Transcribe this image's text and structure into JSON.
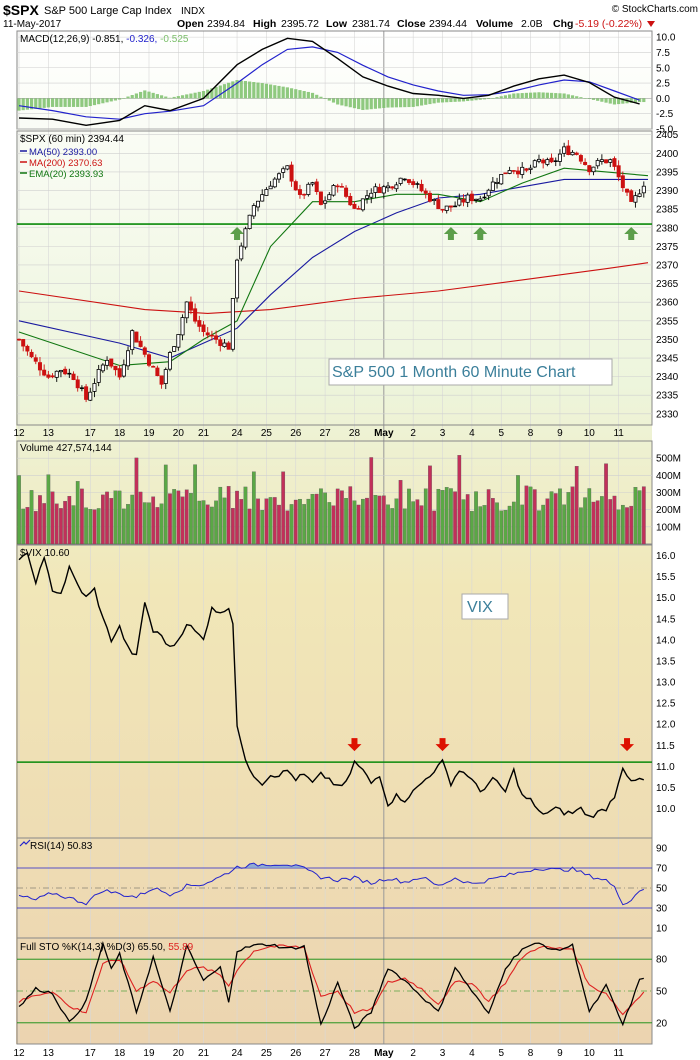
{
  "header": {
    "symbol": "$SPX",
    "name": "S&P 500 Large Cap Index",
    "exchange": "INDX",
    "date": "11-May-2017",
    "open_label": "Open",
    "open": "2394.84",
    "high_label": "High",
    "high": "2395.72",
    "low_label": "Low",
    "low": "2381.74",
    "close_label": "Close",
    "close": "2394.44",
    "volume_label": "Volume",
    "volume": "2.0B",
    "chg_label": "Chg",
    "chg": "-5.19 (-0.22%)",
    "credit": "© StockCharts.com"
  },
  "x_axis": {
    "labels": [
      "12",
      "13",
      "17",
      "18",
      "19",
      "20",
      "21",
      "24",
      "25",
      "26",
      "27",
      "28",
      "May",
      "2",
      "3",
      "4",
      "5",
      "8",
      "9",
      "10",
      "11"
    ],
    "label_bars": [
      0,
      7,
      17,
      24,
      31,
      38,
      44,
      52,
      59,
      66,
      73,
      80,
      87,
      94,
      101,
      108,
      115,
      122,
      129,
      136,
      143
    ]
  },
  "colors": {
    "up": "#2e8b2e",
    "down": "#cc1111",
    "ma50": "#1a1aa0",
    "ma200": "#cc1111",
    "ema20": "#117711",
    "support": "#0a8a0a",
    "resistance_line": "#cc0000",
    "bg_top": "#ffffff",
    "bg_bottom": "#ecd9b8",
    "arrow_up": "#5c9e4a",
    "arrow_down": "#dd1100"
  },
  "chart_data": [
    {
      "type": "line",
      "panel": "macd",
      "title": "MACD(12,26,9)",
      "values_label": [
        "-0.851",
        "-0.326",
        "-0.525"
      ],
      "ylim": [
        -5,
        11
      ],
      "yticks": [
        "10.0",
        "7.5",
        "5.0",
        "2.5",
        "0.0",
        "-2.5",
        "-5.0"
      ],
      "ytick_values": [
        10,
        7.5,
        5,
        2.5,
        0,
        -2.5,
        -5
      ],
      "points_x": [
        0,
        8,
        16,
        24,
        30,
        36,
        44,
        52,
        58,
        64,
        70,
        76,
        82,
        88,
        94,
        100,
        106,
        112,
        118,
        124,
        130,
        136,
        142,
        148
      ],
      "macd": [
        -3.2,
        -3.4,
        -4.4,
        -3.6,
        -1.2,
        -2.0,
        0,
        5.5,
        8.0,
        9.8,
        9.3,
        6.5,
        3.5,
        2.0,
        0.8,
        0.5,
        0,
        0.5,
        2.0,
        3.2,
        3.8,
        2.6,
        0.2,
        -0.9
      ],
      "signal": [
        -1.2,
        -2.0,
        -3.0,
        -3.4,
        -2.5,
        -2.1,
        -1.2,
        2.5,
        5.5,
        8.0,
        8.4,
        7.5,
        5.4,
        3.5,
        2.2,
        1.2,
        0.5,
        0.6,
        1.2,
        2.2,
        3.0,
        2.7,
        1.2,
        -0.3
      ]
    },
    {
      "type": "candlestick",
      "panel": "price",
      "title": "$SPX (60 min)",
      "last": "2394.44",
      "legend": [
        {
          "name": "MA(50)",
          "value": "2393.00"
        },
        {
          "name": "MA(200)",
          "value": "2370.63"
        },
        {
          "name": "EMA(20)",
          "value": "2393.93"
        }
      ],
      "ylim": [
        2327,
        2406
      ],
      "yticks": [
        "2405",
        "2400",
        "2395",
        "2390",
        "2385",
        "2380",
        "2375",
        "2370",
        "2365",
        "2360",
        "2355",
        "2350",
        "2345",
        "2340",
        "2335",
        "2330"
      ],
      "ytick_values": [
        2405,
        2400,
        2395,
        2390,
        2385,
        2380,
        2375,
        2370,
        2365,
        2360,
        2355,
        2350,
        2345,
        2340,
        2335,
        2330
      ],
      "support_level": 2381,
      "annotation": "S&P 500 1 Month 60 Minute Chart",
      "up_arrows_bars": [
        52,
        103,
        110,
        146
      ],
      "close_anchor_x": [
        0,
        3,
        7,
        10,
        13,
        16,
        19,
        21,
        24,
        27,
        31,
        34,
        36,
        38,
        40,
        42,
        44,
        47,
        50,
        52,
        56,
        60,
        64,
        67,
        70,
        72,
        76,
        80,
        84,
        88,
        92,
        96,
        98,
        101,
        104,
        107,
        110,
        113,
        117,
        121,
        124,
        127,
        130,
        133,
        136,
        139,
        141,
        142,
        144,
        146,
        148,
        150
      ],
      "close_anchor_y": [
        2350,
        2345,
        2340,
        2342,
        2340,
        2334,
        2341,
        2345,
        2340,
        2352,
        2344,
        2338,
        2346,
        2352,
        2360,
        2355,
        2352,
        2350,
        2348,
        2372,
        2386,
        2392,
        2396,
        2388,
        2392,
        2386,
        2392,
        2385,
        2390,
        2391,
        2394,
        2390,
        2388,
        2385,
        2386,
        2388,
        2388,
        2392,
        2396,
        2395,
        2398,
        2397,
        2401,
        2400,
        2396,
        2398,
        2398,
        2396,
        2391,
        2386,
        2390,
        2394
      ],
      "ma50_x": [
        0,
        24,
        36,
        44,
        52,
        60,
        70,
        80,
        90,
        100,
        110,
        120,
        130,
        140,
        150
      ],
      "ma50_y": [
        2355,
        2349,
        2345,
        2349,
        2353,
        2362,
        2372,
        2379,
        2384,
        2388,
        2389,
        2391,
        2393,
        2393,
        2393
      ],
      "ma200_x": [
        0,
        30,
        45,
        60,
        80,
        100,
        120,
        140,
        150
      ],
      "ma200_y": [
        2363,
        2358,
        2357,
        2358,
        2361,
        2363,
        2366,
        2369,
        2370.6
      ],
      "ema20_x": [
        0,
        24,
        36,
        44,
        52,
        60,
        70,
        80,
        90,
        100,
        110,
        120,
        130,
        140,
        150
      ],
      "ema20_y": [
        2352,
        2343,
        2344,
        2350,
        2355,
        2375,
        2387,
        2387,
        2389,
        2389,
        2387,
        2392,
        2396,
        2395,
        2394
      ]
    },
    {
      "type": "bar",
      "panel": "volume",
      "title": "Volume",
      "value": "427,574,144",
      "ylim": [
        0,
        600
      ],
      "yticks": [
        "500M",
        "400M",
        "300M",
        "200M",
        "100M"
      ],
      "ytick_values": [
        500,
        400,
        300,
        200,
        100
      ],
      "unit": "M"
    },
    {
      "type": "line",
      "panel": "vix",
      "title": "$VIX",
      "value": "10.60",
      "annotation": "VIX",
      "ylim": [
        9.3,
        16.25
      ],
      "yticks": [
        "16.0",
        "15.5",
        "15.0",
        "14.5",
        "14.0",
        "13.5",
        "13.0",
        "12.5",
        "12.0",
        "11.5",
        "11.0",
        "10.5",
        "10.0"
      ],
      "ytick_values": [
        16,
        15.5,
        15,
        14.5,
        14,
        13.5,
        13,
        12.5,
        12,
        11.5,
        11,
        10.5,
        10
      ],
      "resistance_level": 11.1,
      "down_arrows_bars": [
        80,
        101,
        145
      ],
      "points_x": [
        0,
        2,
        4,
        6,
        8,
        10,
        12,
        14,
        16,
        18,
        20,
        22,
        24,
        26,
        28,
        30,
        32,
        34,
        36,
        38,
        40,
        42,
        44,
        46,
        48,
        50,
        51,
        52,
        54,
        56,
        58,
        60,
        62,
        64,
        66,
        68,
        70,
        72,
        74,
        76,
        78,
        80,
        82,
        84,
        86,
        88,
        90,
        92,
        94,
        96,
        98,
        100,
        101,
        103,
        105,
        107,
        110,
        113,
        116,
        118,
        120,
        122,
        124,
        126,
        128,
        130,
        132,
        134,
        136,
        138,
        140,
        142,
        144,
        146,
        148,
        150
      ],
      "values": [
        15.9,
        16.0,
        15.4,
        15.9,
        15.2,
        15.1,
        15.7,
        15.3,
        15.0,
        15.2,
        14.5,
        14.0,
        14.3,
        13.8,
        13.6,
        14.9,
        14.2,
        14.1,
        13.8,
        14.0,
        14.4,
        14.2,
        14.0,
        14.8,
        14.6,
        14.8,
        14.4,
        12.0,
        11.1,
        10.8,
        10.6,
        10.8,
        10.8,
        10.9,
        10.7,
        10.8,
        10.6,
        10.8,
        10.7,
        10.5,
        10.6,
        11.1,
        10.9,
        10.6,
        10.8,
        10.1,
        10.3,
        10.2,
        10.4,
        10.6,
        10.8,
        11.0,
        11.1,
        10.6,
        10.9,
        10.8,
        10.4,
        10.7,
        10.4,
        10.9,
        10.3,
        10.2,
        9.9,
        9.9,
        10.0,
        9.9,
        9.9,
        10.0,
        9.8,
        9.9,
        10.0,
        10.3,
        11.0,
        10.6,
        10.7,
        10.6
      ]
    },
    {
      "type": "line",
      "panel": "rsi",
      "title": "RSI(14)",
      "value": "50.83",
      "ylim": [
        0,
        100
      ],
      "yticks": [
        "90",
        "70",
        "50",
        "30",
        "10"
      ],
      "ytick_values": [
        90,
        70,
        50,
        30,
        10
      ],
      "overbought": 70,
      "oversold": 30,
      "points_x": [
        0,
        4,
        8,
        12,
        16,
        20,
        24,
        28,
        32,
        36,
        40,
        44,
        48,
        52,
        56,
        60,
        64,
        68,
        72,
        76,
        80,
        84,
        88,
        92,
        96,
        100,
        104,
        108,
        112,
        116,
        120,
        124,
        128,
        132,
        136,
        140,
        142,
        144,
        146,
        148,
        150
      ],
      "values": [
        42,
        38,
        45,
        40,
        35,
        48,
        44,
        41,
        50,
        44,
        52,
        54,
        61,
        71,
        73,
        74,
        74,
        69,
        61,
        58,
        60,
        55,
        60,
        56,
        61,
        52,
        60,
        54,
        58,
        62,
        66,
        70,
        68,
        69,
        62,
        58,
        50,
        35,
        38,
        48,
        51
      ]
    },
    {
      "type": "line",
      "panel": "stochastic",
      "title": "Full STO %K(14,3) %D(3)",
      "values_label": [
        "65.50",
        "55.89"
      ],
      "ylim": [
        0,
        100
      ],
      "yticks": [
        "80",
        "50",
        "20"
      ],
      "ytick_values": [
        80,
        50,
        20
      ],
      "points_x": [
        0,
        4,
        8,
        12,
        16,
        20,
        22,
        24,
        28,
        32,
        36,
        40,
        44,
        48,
        50,
        52,
        56,
        60,
        64,
        68,
        72,
        76,
        80,
        84,
        88,
        92,
        96,
        100,
        104,
        108,
        112,
        116,
        120,
        124,
        128,
        132,
        136,
        140,
        144,
        148,
        150
      ],
      "k": [
        35,
        52,
        48,
        20,
        40,
        95,
        70,
        85,
        30,
        82,
        30,
        92,
        60,
        72,
        40,
        88,
        93,
        94,
        90,
        92,
        18,
        58,
        15,
        30,
        72,
        60,
        45,
        30,
        72,
        50,
        28,
        72,
        90,
        95,
        88,
        93,
        30,
        55,
        18,
        60,
        65
      ],
      "d": [
        40,
        46,
        50,
        35,
        30,
        75,
        78,
        80,
        50,
        60,
        48,
        70,
        72,
        65,
        55,
        70,
        88,
        92,
        92,
        91,
        45,
        50,
        30,
        32,
        58,
        62,
        52,
        38,
        58,
        58,
        40,
        58,
        82,
        92,
        90,
        90,
        55,
        48,
        28,
        45,
        56
      ]
    }
  ]
}
